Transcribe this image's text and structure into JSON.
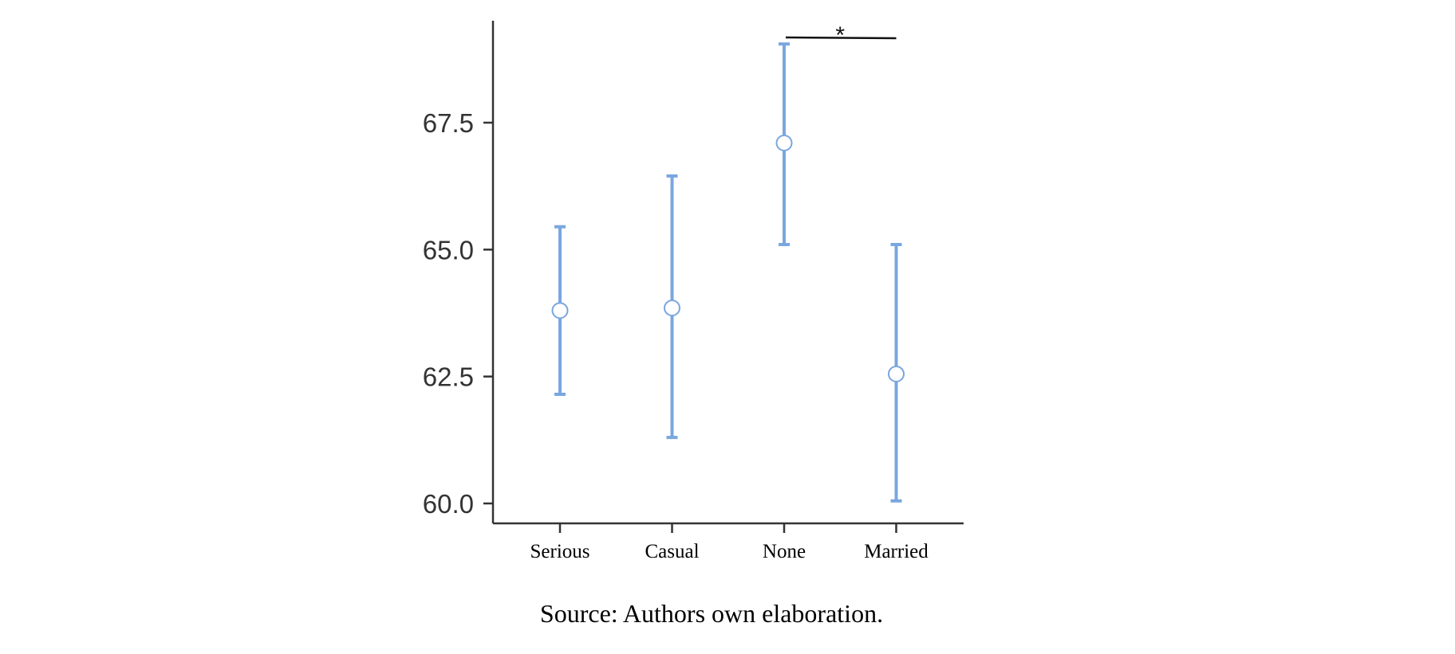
{
  "chart_data": {
    "type": "errorbar",
    "categories": [
      "Serious",
      "Casual",
      "None",
      "Married"
    ],
    "series": [
      {
        "means": [
          63.8,
          63.85,
          67.1,
          62.55
        ],
        "lower": [
          62.15,
          61.3,
          65.1,
          60.05
        ],
        "upper": [
          65.45,
          66.45,
          69.05,
          65.1
        ]
      }
    ],
    "ylim": [
      59.6,
      69.6
    ],
    "yticks": [
      "60.0",
      "62.5",
      "65.0",
      "67.5"
    ],
    "xlabel": "",
    "ylabel": "",
    "grid": false,
    "colors": {
      "error_bar": "#7aa6df",
      "marker_fill": "#ffffff",
      "axis": "#333333",
      "bracket": "#111111"
    },
    "significance": {
      "between": [
        "None",
        "Married"
      ],
      "label": "*"
    }
  },
  "caption": "Source: Authors own elaboration."
}
